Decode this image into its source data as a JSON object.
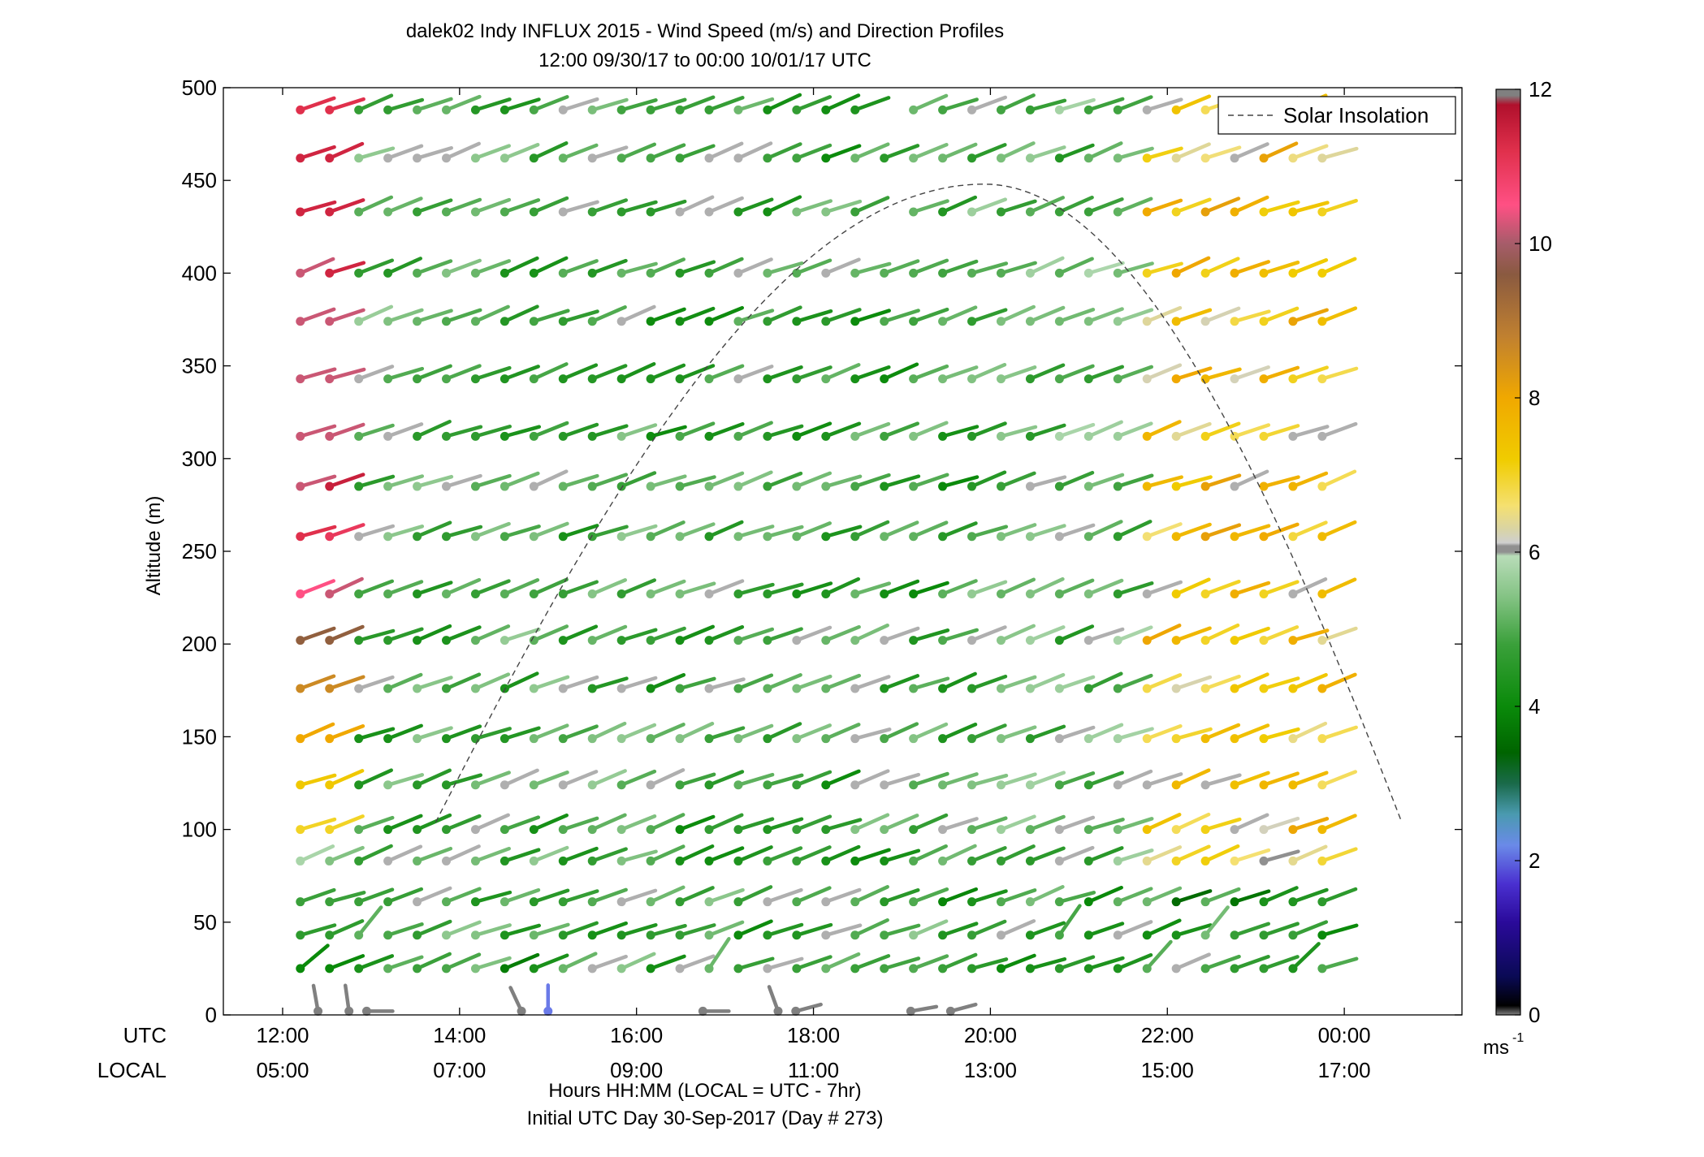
{
  "chart_data": {
    "type": "wind-barb-profile",
    "title": "dalek02 Indy INFLUX 2015 - Wind Speed (m/s) and Direction Profiles",
    "subtitle": "12:00 09/30/17 to 00:00 10/01/17  UTC",
    "ylabel": "Altitude (m)",
    "xlabel": "Hours HH:MM  (LOCAL = UTC - 7hr)",
    "footer": "Initial UTC Day 30-Sep-2017 (Day # 273)",
    "row_labels": {
      "utc": "UTC",
      "local": "LOCAL"
    },
    "xlim_hours": [
      11.33,
      25.33
    ],
    "ylim": [
      0,
      500
    ],
    "y_ticks": [
      "0",
      "50",
      "100",
      "150",
      "200",
      "250",
      "300",
      "350",
      "400",
      "450",
      "500"
    ],
    "x_ticks": [
      {
        "hour": 12,
        "utc": "12:00",
        "local": "05:00"
      },
      {
        "hour": 14,
        "utc": "14:00",
        "local": "07:00"
      },
      {
        "hour": 16,
        "utc": "16:00",
        "local": "09:00"
      },
      {
        "hour": 18,
        "utc": "18:00",
        "local": "11:00"
      },
      {
        "hour": 20,
        "utc": "20:00",
        "local": "13:00"
      },
      {
        "hour": 22,
        "utc": "22:00",
        "local": "15:00"
      },
      {
        "hour": 24,
        "utc": "00:00",
        "local": "17:00"
      }
    ],
    "legend": {
      "label": "Solar Insolation",
      "position": "top-right",
      "style": "dashed"
    },
    "solar_insolation": {
      "start_hour": 13.73,
      "end_hour": 24.65,
      "peak_hour": 19.93,
      "peak_altitude": 448
    },
    "colorbar": {
      "range": [
        0,
        12
      ],
      "ticks": [
        "0",
        "2",
        "4",
        "6",
        "8",
        "10",
        "12"
      ],
      "unit": "ms",
      "unit_superscript": "-1",
      "stops": [
        {
          "v": 0.0,
          "c": "#808080"
        },
        {
          "v": 0.12,
          "c": "#000000"
        },
        {
          "v": 0.5,
          "c": "#0a0a55"
        },
        {
          "v": 1.2,
          "c": "#2a0a9a"
        },
        {
          "v": 1.7,
          "c": "#4a30d0"
        },
        {
          "v": 2.2,
          "c": "#6a8ae8"
        },
        {
          "v": 2.6,
          "c": "#4a9ab0"
        },
        {
          "v": 3.0,
          "c": "#1a6a4a"
        },
        {
          "v": 3.4,
          "c": "#006400"
        },
        {
          "v": 4.0,
          "c": "#0a8a0a"
        },
        {
          "v": 4.8,
          "c": "#3aa03a"
        },
        {
          "v": 5.4,
          "c": "#82c282"
        },
        {
          "v": 5.95,
          "c": "#b8dcb8"
        },
        {
          "v": 6.0,
          "c": "#909090"
        },
        {
          "v": 6.08,
          "c": "#909090"
        },
        {
          "v": 6.12,
          "c": "#cfcfcf"
        },
        {
          "v": 6.3,
          "c": "#d9d4a4"
        },
        {
          "v": 6.6,
          "c": "#f5e070"
        },
        {
          "v": 7.2,
          "c": "#f0cc00"
        },
        {
          "v": 8.0,
          "c": "#f0a800"
        },
        {
          "v": 8.8,
          "c": "#c08030"
        },
        {
          "v": 9.6,
          "c": "#8a5a40"
        },
        {
          "v": 10.0,
          "c": "#a65c6a"
        },
        {
          "v": 10.5,
          "c": "#ff5084"
        },
        {
          "v": 11.2,
          "c": "#e0304c"
        },
        {
          "v": 11.8,
          "c": "#b0102c"
        },
        {
          "v": 11.92,
          "c": "#808080"
        },
        {
          "v": 12.0,
          "c": "#808080"
        }
      ]
    },
    "profile_altitudes": [
      25,
      43,
      61,
      83,
      100,
      124,
      149,
      176,
      202,
      227,
      258,
      285,
      312,
      343,
      374,
      400,
      433,
      462,
      488
    ],
    "wind_speeds": {
      "12.2": [
        4,
        4.6,
        4.8,
        5.8,
        7,
        7.3,
        8,
        8.6,
        9.5,
        10.5,
        11.2,
        10.2,
        10.2,
        10.2,
        10.2,
        10.2,
        11.4,
        11.4,
        11.2
      ],
      "12.5": [
        4,
        4.6,
        4.8,
        5.4,
        7,
        7.3,
        8,
        8.6,
        9.5,
        10.2,
        11,
        11.5,
        10.2,
        10.2,
        10.2,
        11.4,
        11.4,
        11.4,
        11.2
      ],
      "12.8": [
        4,
        4.8,
        4.8,
        5.4,
        7,
        7.3,
        8,
        8.6,
        9.5,
        9.5,
        10.8,
        11.2,
        10.2,
        10.2,
        10.2,
        11.4,
        11.4,
        null,
        null
      ],
      "13.1": [
        4,
        4.8,
        4.8,
        5.4,
        6.8,
        7.3,
        7.8,
        8.6,
        9.5,
        9.5,
        9.5,
        11.2,
        11.4,
        11.4,
        11.0,
        11.4,
        11.4,
        null,
        null
      ],
      "13.4": [
        4,
        4.8,
        5.4,
        5.4,
        6.6,
        7.0,
        6.8,
        6.6,
        7.2,
        8.6,
        9.5,
        10.8,
        9.6,
        11.4,
        11.2,
        11.4,
        11.4,
        null,
        null
      ],
      "13.7": [
        4,
        5.4,
        5.4,
        5.6,
        5.6,
        5.6,
        5.6,
        6.6,
        6.4,
        8.6,
        8.6,
        9.6,
        8.8,
        9.6,
        9.6,
        9.6,
        11.4,
        null,
        null
      ],
      "14.0": [
        4.6,
        4.8,
        5.4,
        5.4,
        5.6,
        5.6,
        5.6,
        5.4,
        6.1,
        6.4,
        7.2,
        6.3,
        6.5,
        8.4,
        8.4,
        8.4,
        8.4,
        8.4,
        10.6
      ]
    },
    "directions_deg": "mostly from west-southwest; barbs drawn as sticks from station dot"
  }
}
